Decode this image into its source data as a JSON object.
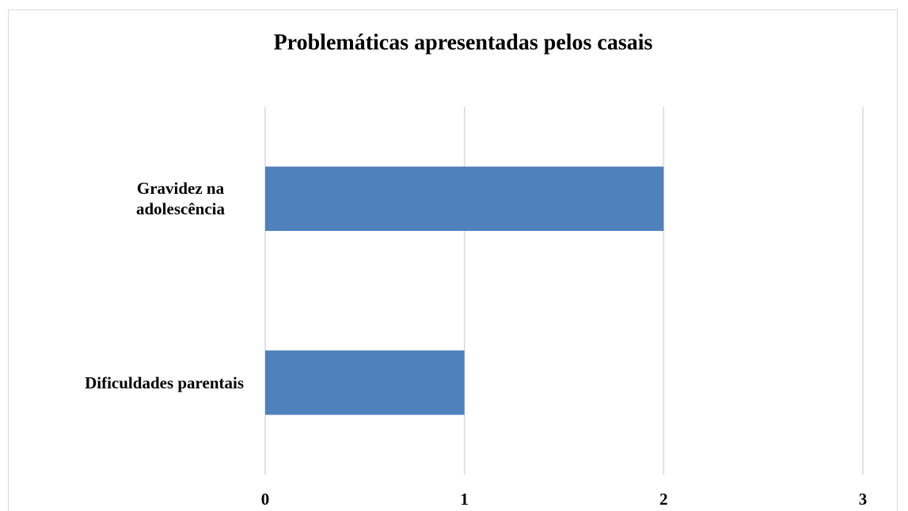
{
  "chart_data": {
    "type": "bar",
    "orientation": "horizontal",
    "title": "Problemáticas apresentadas pelos casais",
    "categories": [
      "Gravidez na adolescência",
      "Dificuldades parentais"
    ],
    "values": [
      2,
      1
    ],
    "color": "#4f81bd",
    "xlim": [
      0,
      3
    ],
    "xticks": [
      0,
      1,
      2,
      3
    ],
    "grid": true
  }
}
